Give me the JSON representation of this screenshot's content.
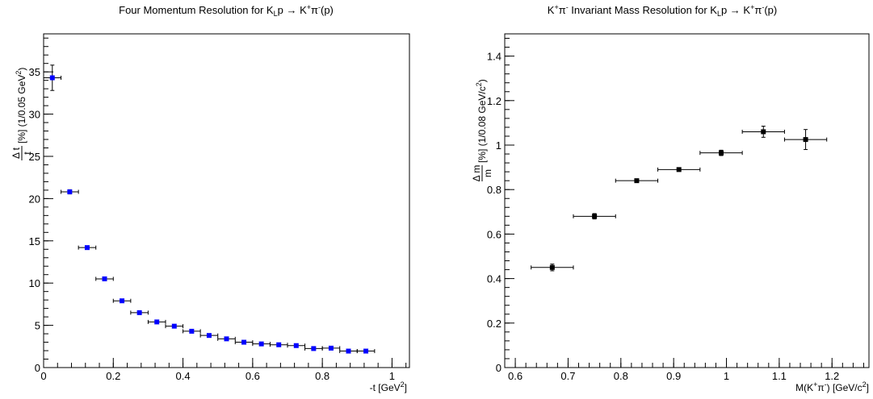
{
  "chart_data": [
    {
      "type": "scatter",
      "title_main": "Four Momentum Resolution for K",
      "title_sub": "L",
      "title_rest": "p → K",
      "title_sup1": "+",
      "title_pi": "π",
      "title_sup2": "-",
      "title_tail": "(p)",
      "xlabel_main": "-t [GeV",
      "xlabel_sup": "2",
      "xlabel_end": "]",
      "ylabel_frac_num": "Δ t",
      "ylabel_frac_den": "t",
      "ylabel_main": "[%] (1/0.05 GeV",
      "ylabel_sup": "2",
      "ylabel_end": ")",
      "xlim": [
        0,
        1.05
      ],
      "ylim": [
        0,
        39.5
      ],
      "xticks": [
        0,
        0.2,
        0.4,
        0.6,
        0.8,
        1
      ],
      "xtick_labels": [
        "0",
        "0.2",
        "0.4",
        "0.6",
        "0.8",
        "1"
      ],
      "yticks": [
        0,
        5,
        10,
        15,
        20,
        25,
        30,
        35
      ],
      "ytick_labels": [
        "0",
        "5",
        "10",
        "15",
        "20",
        "25",
        "30",
        "35"
      ],
      "marker_color": "#0000ff",
      "x_halfwidth": 0.025,
      "x": [
        0.025,
        0.075,
        0.125,
        0.175,
        0.225,
        0.275,
        0.325,
        0.375,
        0.425,
        0.475,
        0.525,
        0.575,
        0.625,
        0.675,
        0.725,
        0.775,
        0.825,
        0.875,
        0.925
      ],
      "y": [
        34.3,
        20.8,
        14.2,
        10.5,
        7.9,
        6.5,
        5.4,
        4.9,
        4.3,
        3.8,
        3.4,
        3.0,
        2.8,
        2.7,
        2.6,
        2.25,
        2.3,
        1.95,
        1.95
      ],
      "yerr": [
        1.5,
        0.25,
        0.2,
        0.15,
        0.12,
        0.1,
        0.1,
        0.1,
        0.1,
        0.1,
        0.1,
        0.1,
        0.1,
        0.1,
        0.1,
        0.1,
        0.1,
        0.1,
        0.1
      ]
    },
    {
      "type": "scatter",
      "title_k": "K",
      "title_sup1": "+",
      "title_pi": "π",
      "title_sup2": "-",
      "title_mid": " Invariant Mass Resolution for K",
      "title_sub": "L",
      "title_rest": "p → K",
      "title_sup3": "+",
      "title_pi2": "π",
      "title_sup4": "-",
      "title_tail": "(p)",
      "xlabel_main": "M(K",
      "xlabel_sup1": "+",
      "xlabel_pi": "π",
      "xlabel_sup2": "-",
      "xlabel_mid": ") [GeV/c",
      "xlabel_sup3": "2",
      "xlabel_end": "]",
      "ylabel_frac_num": "Δ m",
      "ylabel_frac_den": "m",
      "ylabel_main": "[%] (1/0.08 GeV/c",
      "ylabel_sup": "2",
      "ylabel_end": ")",
      "xlim": [
        0.58,
        1.27
      ],
      "ylim": [
        0,
        1.5
      ],
      "xticks": [
        0.6,
        0.7,
        0.8,
        0.9,
        1.0,
        1.1,
        1.2
      ],
      "xtick_labels": [
        "0.6",
        "0.7",
        "0.8",
        "0.9",
        "1",
        "1.1",
        "1.2"
      ],
      "yticks": [
        0,
        0.2,
        0.4,
        0.6,
        0.8,
        1.0,
        1.2,
        1.4
      ],
      "ytick_labels": [
        "0",
        "0.2",
        "0.4",
        "0.6",
        "0.8",
        "1",
        "1.2",
        "1.4"
      ],
      "marker_color": "#000000",
      "x_halfwidth": 0.04,
      "x": [
        0.67,
        0.75,
        0.83,
        0.91,
        0.99,
        1.07,
        1.15
      ],
      "y": [
        0.45,
        0.68,
        0.84,
        0.89,
        0.965,
        1.06,
        1.025
      ],
      "yerr": [
        0.015,
        0.012,
        0.008,
        0.008,
        0.012,
        0.025,
        0.045
      ]
    }
  ]
}
